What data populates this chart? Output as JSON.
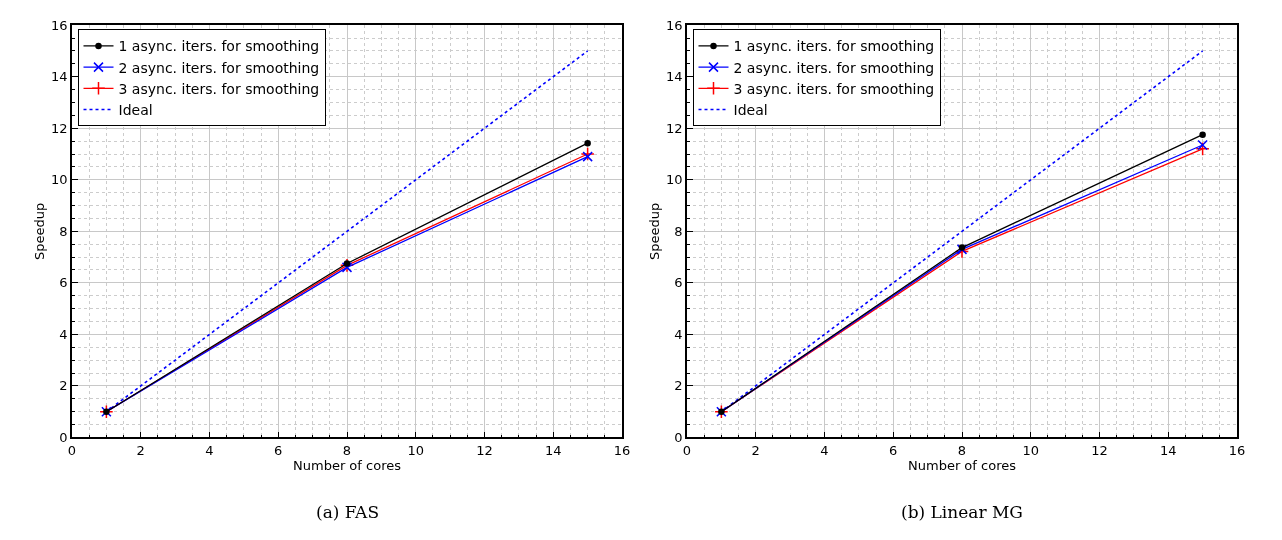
{
  "chart_data": [
    {
      "type": "line",
      "xlabel": "Number of cores",
      "ylabel": "Speedup",
      "annotations": [
        "(a) FAS"
      ],
      "xlim": [
        0,
        16
      ],
      "ylim": [
        0,
        16
      ],
      "xticks": [
        0,
        2,
        4,
        6,
        8,
        10,
        12,
        14,
        16
      ],
      "yticks": [
        0,
        2,
        4,
        6,
        8,
        10,
        12,
        14,
        16
      ],
      "grid": true,
      "legend": "top left",
      "x": [
        1,
        8,
        15
      ],
      "series": [
        {
          "name": "1 async. iters. for smoothing",
          "color": "#000000",
          "values": [
            1,
            6.75,
            11.42
          ],
          "marker": "circle",
          "line_style": "solid"
        },
        {
          "name": "2 async. iters. for smoothing",
          "color": "#0000ff",
          "values": [
            1,
            6.6,
            10.9
          ],
          "marker": "cross",
          "line_style": "solid"
        },
        {
          "name": "3 async. iters. for smoothing",
          "color": "#ff0000",
          "values": [
            1,
            6.68,
            11.0
          ],
          "marker": "plus",
          "line_style": "solid"
        },
        {
          "name": "Ideal",
          "color": "#0000ff",
          "values": [
            1,
            8,
            15
          ],
          "marker": "none",
          "line_style": "dotted"
        }
      ]
    },
    {
      "type": "line",
      "xlabel": "Number of cores",
      "ylabel": "Speedup",
      "annotations": [
        "(b) Linear MG"
      ],
      "xlim": [
        0,
        16
      ],
      "ylim": [
        0,
        16
      ],
      "xticks": [
        0,
        2,
        4,
        6,
        8,
        10,
        12,
        14,
        16
      ],
      "yticks": [
        0,
        2,
        4,
        6,
        8,
        10,
        12,
        14,
        16
      ],
      "grid": true,
      "legend": "top left",
      "x": [
        1,
        8,
        15
      ],
      "series": [
        {
          "name": "1 async. iters. for smoothing",
          "color": "#000000",
          "values": [
            1,
            7.37,
            11.75
          ],
          "marker": "circle",
          "line_style": "solid"
        },
        {
          "name": "2 async. iters. for smoothing",
          "color": "#0000ff",
          "values": [
            1,
            7.3,
            11.35
          ],
          "marker": "cross",
          "line_style": "solid"
        },
        {
          "name": "3 async. iters. for smoothing",
          "color": "#ff0000",
          "values": [
            1,
            7.22,
            11.2
          ],
          "marker": "plus",
          "line_style": "solid"
        },
        {
          "name": "Ideal",
          "color": "#0000ff",
          "values": [
            1,
            8,
            15
          ],
          "marker": "none",
          "line_style": "dotted"
        }
      ]
    }
  ]
}
